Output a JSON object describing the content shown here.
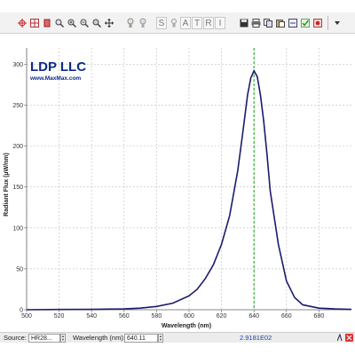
{
  "toolbar": {
    "group1": [
      "crosshair-icon",
      "grid-icon",
      "delete-icon",
      "zoom-icon",
      "zoom-in-icon",
      "zoom-out-icon",
      "zoom-reset-icon",
      "pan-icon"
    ],
    "group2": [
      "lamp-icon",
      "lamp-off-icon"
    ],
    "letters": [
      "S",
      "A",
      "T",
      "R",
      "I"
    ],
    "group3": [
      "save-icon",
      "print-icon",
      "copy-icon",
      "paste-icon",
      "export-icon",
      "check-icon",
      "settings-icon"
    ]
  },
  "brand": {
    "name": "LDP LLC",
    "url": "www.MaxMax.com",
    "color": "#0b2a8c"
  },
  "chart_data": {
    "type": "line",
    "xlabel": "Wavelength (nm)",
    "ylabel": "Radiant Flux (µW/nm)",
    "xlim": [
      500,
      700
    ],
    "ylim": [
      0,
      320
    ],
    "x_ticks": [
      500,
      520,
      540,
      560,
      580,
      600,
      620,
      640,
      660,
      680
    ],
    "y_ticks": [
      0,
      50,
      100,
      150,
      200,
      250,
      300
    ],
    "grid": true,
    "series": [
      {
        "color": "#1a1a6e",
        "x": [
          500,
          520,
          540,
          560,
          570,
          580,
          590,
          600,
          605,
          610,
          615,
          620,
          625,
          630,
          633,
          636,
          638,
          640,
          642,
          644,
          646,
          648,
          650,
          655,
          660,
          665,
          670,
          680,
          690,
          700
        ],
        "y": [
          0,
          0.3,
          0.5,
          1,
          2,
          4,
          8,
          17,
          25,
          38,
          55,
          80,
          115,
          170,
          215,
          262,
          283,
          292,
          285,
          262,
          230,
          190,
          145,
          80,
          35,
          15,
          6,
          2,
          1,
          0.5
        ]
      }
    ],
    "marker_line": {
      "x": 640,
      "color": "#2fb52f"
    }
  },
  "statusbar": {
    "source_label": "Source:",
    "source_value": "HR28...",
    "wavelength_label": "Wavelength (nm):",
    "wavelength_value": "640.11",
    "readout": "2.9181E02"
  }
}
